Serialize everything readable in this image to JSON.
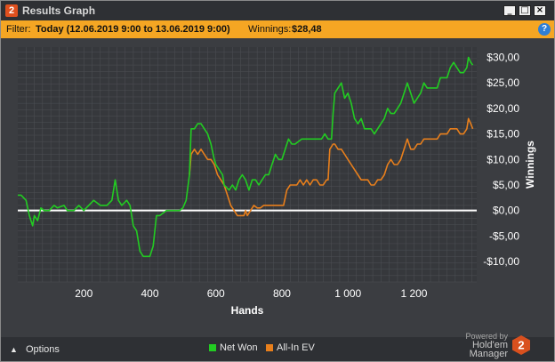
{
  "window": {
    "app_badge": "2",
    "title": "Results Graph",
    "minimize_glyph": "_",
    "maximize_glyph": "□",
    "close_glyph": "×"
  },
  "filter": {
    "label": "Filter:",
    "value": "Today (12.06.2019 9:00 to 13.06.2019 9:00)",
    "winnings_label": "Winnings:",
    "winnings_value": "$28,48",
    "help_glyph": "?"
  },
  "footer": {
    "options_label": "Options",
    "options_icon": "chevron-up-icon",
    "legend_net_won": "Net Won",
    "legend_allin_ev": "All-In EV",
    "powered_by": "Powered by",
    "product": "Hold'em Manager",
    "logo_number": "2"
  },
  "colors": {
    "net_won": "#22cc22",
    "allin_ev": "#e87f1c",
    "zero_line": "#ffffff",
    "plot_bg": "#3b3d41",
    "grid": "#4e5055",
    "accent": "#f5a623"
  },
  "chart_data": {
    "type": "line",
    "title": "",
    "xlabel": "Hands",
    "ylabel": "Winnings",
    "xlim": [
      0,
      1390
    ],
    "ylim": [
      -14,
      32
    ],
    "x_ticks": [
      200,
      400,
      600,
      800,
      1000,
      1200
    ],
    "x_tick_labels": [
      "200",
      "400",
      "600",
      "800",
      "1 000",
      "1 200"
    ],
    "y_ticks": [
      -10,
      -5,
      0,
      5,
      10,
      15,
      20,
      25,
      30
    ],
    "y_tick_labels": [
      "-$10,00",
      "-$5,00",
      "$0,00",
      "$5,00",
      "$10,00",
      "$15,00",
      "$20,00",
      "$25,00",
      "$30,00"
    ],
    "grid": true,
    "legend_position": "bottom",
    "series": [
      {
        "name": "Net Won",
        "color": "#22cc22",
        "points": [
          [
            0,
            3
          ],
          [
            10,
            3
          ],
          [
            25,
            2
          ],
          [
            35,
            -1
          ],
          [
            45,
            -3
          ],
          [
            50,
            -1
          ],
          [
            60,
            -2
          ],
          [
            70,
            0.5
          ],
          [
            80,
            0
          ],
          [
            95,
            0
          ],
          [
            110,
            1
          ],
          [
            120,
            0.5
          ],
          [
            140,
            1
          ],
          [
            150,
            0
          ],
          [
            170,
            0
          ],
          [
            185,
            1
          ],
          [
            200,
            0
          ],
          [
            215,
            1
          ],
          [
            230,
            2
          ],
          [
            250,
            1
          ],
          [
            270,
            1
          ],
          [
            285,
            2
          ],
          [
            295,
            6
          ],
          [
            305,
            2
          ],
          [
            315,
            1
          ],
          [
            330,
            2
          ],
          [
            340,
            1
          ],
          [
            350,
            -3
          ],
          [
            360,
            -4
          ],
          [
            370,
            -8
          ],
          [
            380,
            -9
          ],
          [
            390,
            -9
          ],
          [
            400,
            -9
          ],
          [
            410,
            -7
          ],
          [
            420,
            -1
          ],
          [
            430,
            -1
          ],
          [
            450,
            0
          ],
          [
            470,
            0
          ],
          [
            490,
            0
          ],
          [
            500,
            0.5
          ],
          [
            510,
            2
          ],
          [
            520,
            7
          ],
          [
            525,
            16
          ],
          [
            535,
            16
          ],
          [
            545,
            17
          ],
          [
            555,
            17
          ],
          [
            565,
            16
          ],
          [
            575,
            15
          ],
          [
            585,
            13
          ],
          [
            595,
            10
          ],
          [
            600,
            9
          ],
          [
            620,
            7
          ],
          [
            625,
            5
          ],
          [
            640,
            4
          ],
          [
            650,
            5
          ],
          [
            660,
            4
          ],
          [
            670,
            6
          ],
          [
            680,
            7
          ],
          [
            690,
            6
          ],
          [
            700,
            4
          ],
          [
            710,
            6
          ],
          [
            720,
            6
          ],
          [
            730,
            5
          ],
          [
            740,
            6
          ],
          [
            750,
            7
          ],
          [
            760,
            7
          ],
          [
            770,
            9
          ],
          [
            780,
            11
          ],
          [
            790,
            10
          ],
          [
            800,
            10
          ],
          [
            820,
            14
          ],
          [
            830,
            13
          ],
          [
            840,
            13
          ],
          [
            860,
            14
          ],
          [
            880,
            14
          ],
          [
            900,
            14
          ],
          [
            920,
            14
          ],
          [
            930,
            15
          ],
          [
            940,
            14
          ],
          [
            950,
            14
          ],
          [
            955,
            19
          ],
          [
            960,
            23
          ],
          [
            970,
            24
          ],
          [
            980,
            25
          ],
          [
            990,
            22
          ],
          [
            1000,
            23
          ],
          [
            1010,
            21
          ],
          [
            1020,
            18
          ],
          [
            1030,
            17
          ],
          [
            1040,
            18
          ],
          [
            1050,
            16
          ],
          [
            1060,
            16
          ],
          [
            1070,
            16
          ],
          [
            1080,
            15
          ],
          [
            1090,
            16
          ],
          [
            1100,
            17
          ],
          [
            1110,
            18
          ],
          [
            1120,
            20
          ],
          [
            1130,
            19
          ],
          [
            1140,
            19
          ],
          [
            1150,
            20
          ],
          [
            1160,
            21
          ],
          [
            1170,
            23
          ],
          [
            1180,
            25
          ],
          [
            1190,
            23
          ],
          [
            1200,
            21
          ],
          [
            1210,
            22
          ],
          [
            1220,
            23
          ],
          [
            1230,
            25
          ],
          [
            1240,
            24
          ],
          [
            1250,
            24
          ],
          [
            1260,
            24
          ],
          [
            1270,
            24
          ],
          [
            1280,
            26
          ],
          [
            1290,
            26
          ],
          [
            1300,
            26
          ],
          [
            1310,
            28
          ],
          [
            1320,
            29
          ],
          [
            1330,
            28
          ],
          [
            1340,
            27
          ],
          [
            1350,
            27
          ],
          [
            1360,
            28
          ],
          [
            1365,
            30
          ],
          [
            1372,
            29
          ],
          [
            1378,
            28.5
          ]
        ]
      },
      {
        "name": "All-In EV",
        "color": "#e87f1c",
        "points": [
          [
            520,
            7
          ],
          [
            525,
            11
          ],
          [
            535,
            12
          ],
          [
            545,
            11
          ],
          [
            555,
            12
          ],
          [
            565,
            11
          ],
          [
            575,
            10
          ],
          [
            585,
            10
          ],
          [
            595,
            9
          ],
          [
            605,
            7
          ],
          [
            615,
            6
          ],
          [
            625,
            5
          ],
          [
            635,
            3
          ],
          [
            645,
            1
          ],
          [
            655,
            0
          ],
          [
            665,
            -1
          ],
          [
            675,
            -1
          ],
          [
            685,
            -1
          ],
          [
            690,
            0
          ],
          [
            695,
            -1
          ],
          [
            705,
            0
          ],
          [
            715,
            1
          ],
          [
            725,
            0.5
          ],
          [
            735,
            0.5
          ],
          [
            745,
            1
          ],
          [
            755,
            1
          ],
          [
            765,
            1
          ],
          [
            775,
            1
          ],
          [
            785,
            1
          ],
          [
            795,
            1
          ],
          [
            805,
            1
          ],
          [
            815,
            4
          ],
          [
            825,
            5
          ],
          [
            835,
            5
          ],
          [
            845,
            5
          ],
          [
            855,
            6
          ],
          [
            865,
            5
          ],
          [
            875,
            6
          ],
          [
            885,
            5
          ],
          [
            895,
            6
          ],
          [
            905,
            6
          ],
          [
            915,
            5
          ],
          [
            925,
            5
          ],
          [
            935,
            6
          ],
          [
            940,
            6
          ],
          [
            945,
            12
          ],
          [
            955,
            13
          ],
          [
            960,
            13
          ],
          [
            970,
            12
          ],
          [
            980,
            12
          ],
          [
            990,
            11
          ],
          [
            1000,
            10
          ],
          [
            1010,
            9
          ],
          [
            1020,
            8
          ],
          [
            1030,
            7
          ],
          [
            1040,
            6
          ],
          [
            1050,
            6
          ],
          [
            1060,
            6
          ],
          [
            1070,
            5
          ],
          [
            1080,
            5
          ],
          [
            1090,
            6
          ],
          [
            1100,
            6
          ],
          [
            1110,
            7
          ],
          [
            1120,
            9
          ],
          [
            1130,
            10
          ],
          [
            1140,
            9
          ],
          [
            1150,
            9
          ],
          [
            1160,
            10
          ],
          [
            1170,
            12
          ],
          [
            1180,
            14
          ],
          [
            1190,
            12
          ],
          [
            1200,
            12
          ],
          [
            1210,
            13
          ],
          [
            1220,
            13
          ],
          [
            1230,
            14
          ],
          [
            1240,
            14
          ],
          [
            1250,
            14
          ],
          [
            1260,
            14
          ],
          [
            1270,
            14
          ],
          [
            1280,
            15
          ],
          [
            1290,
            15
          ],
          [
            1300,
            15
          ],
          [
            1310,
            16
          ],
          [
            1320,
            16
          ],
          [
            1330,
            16
          ],
          [
            1340,
            15
          ],
          [
            1350,
            15
          ],
          [
            1360,
            16
          ],
          [
            1365,
            18
          ],
          [
            1372,
            17
          ],
          [
            1378,
            16
          ]
        ]
      }
    ]
  }
}
